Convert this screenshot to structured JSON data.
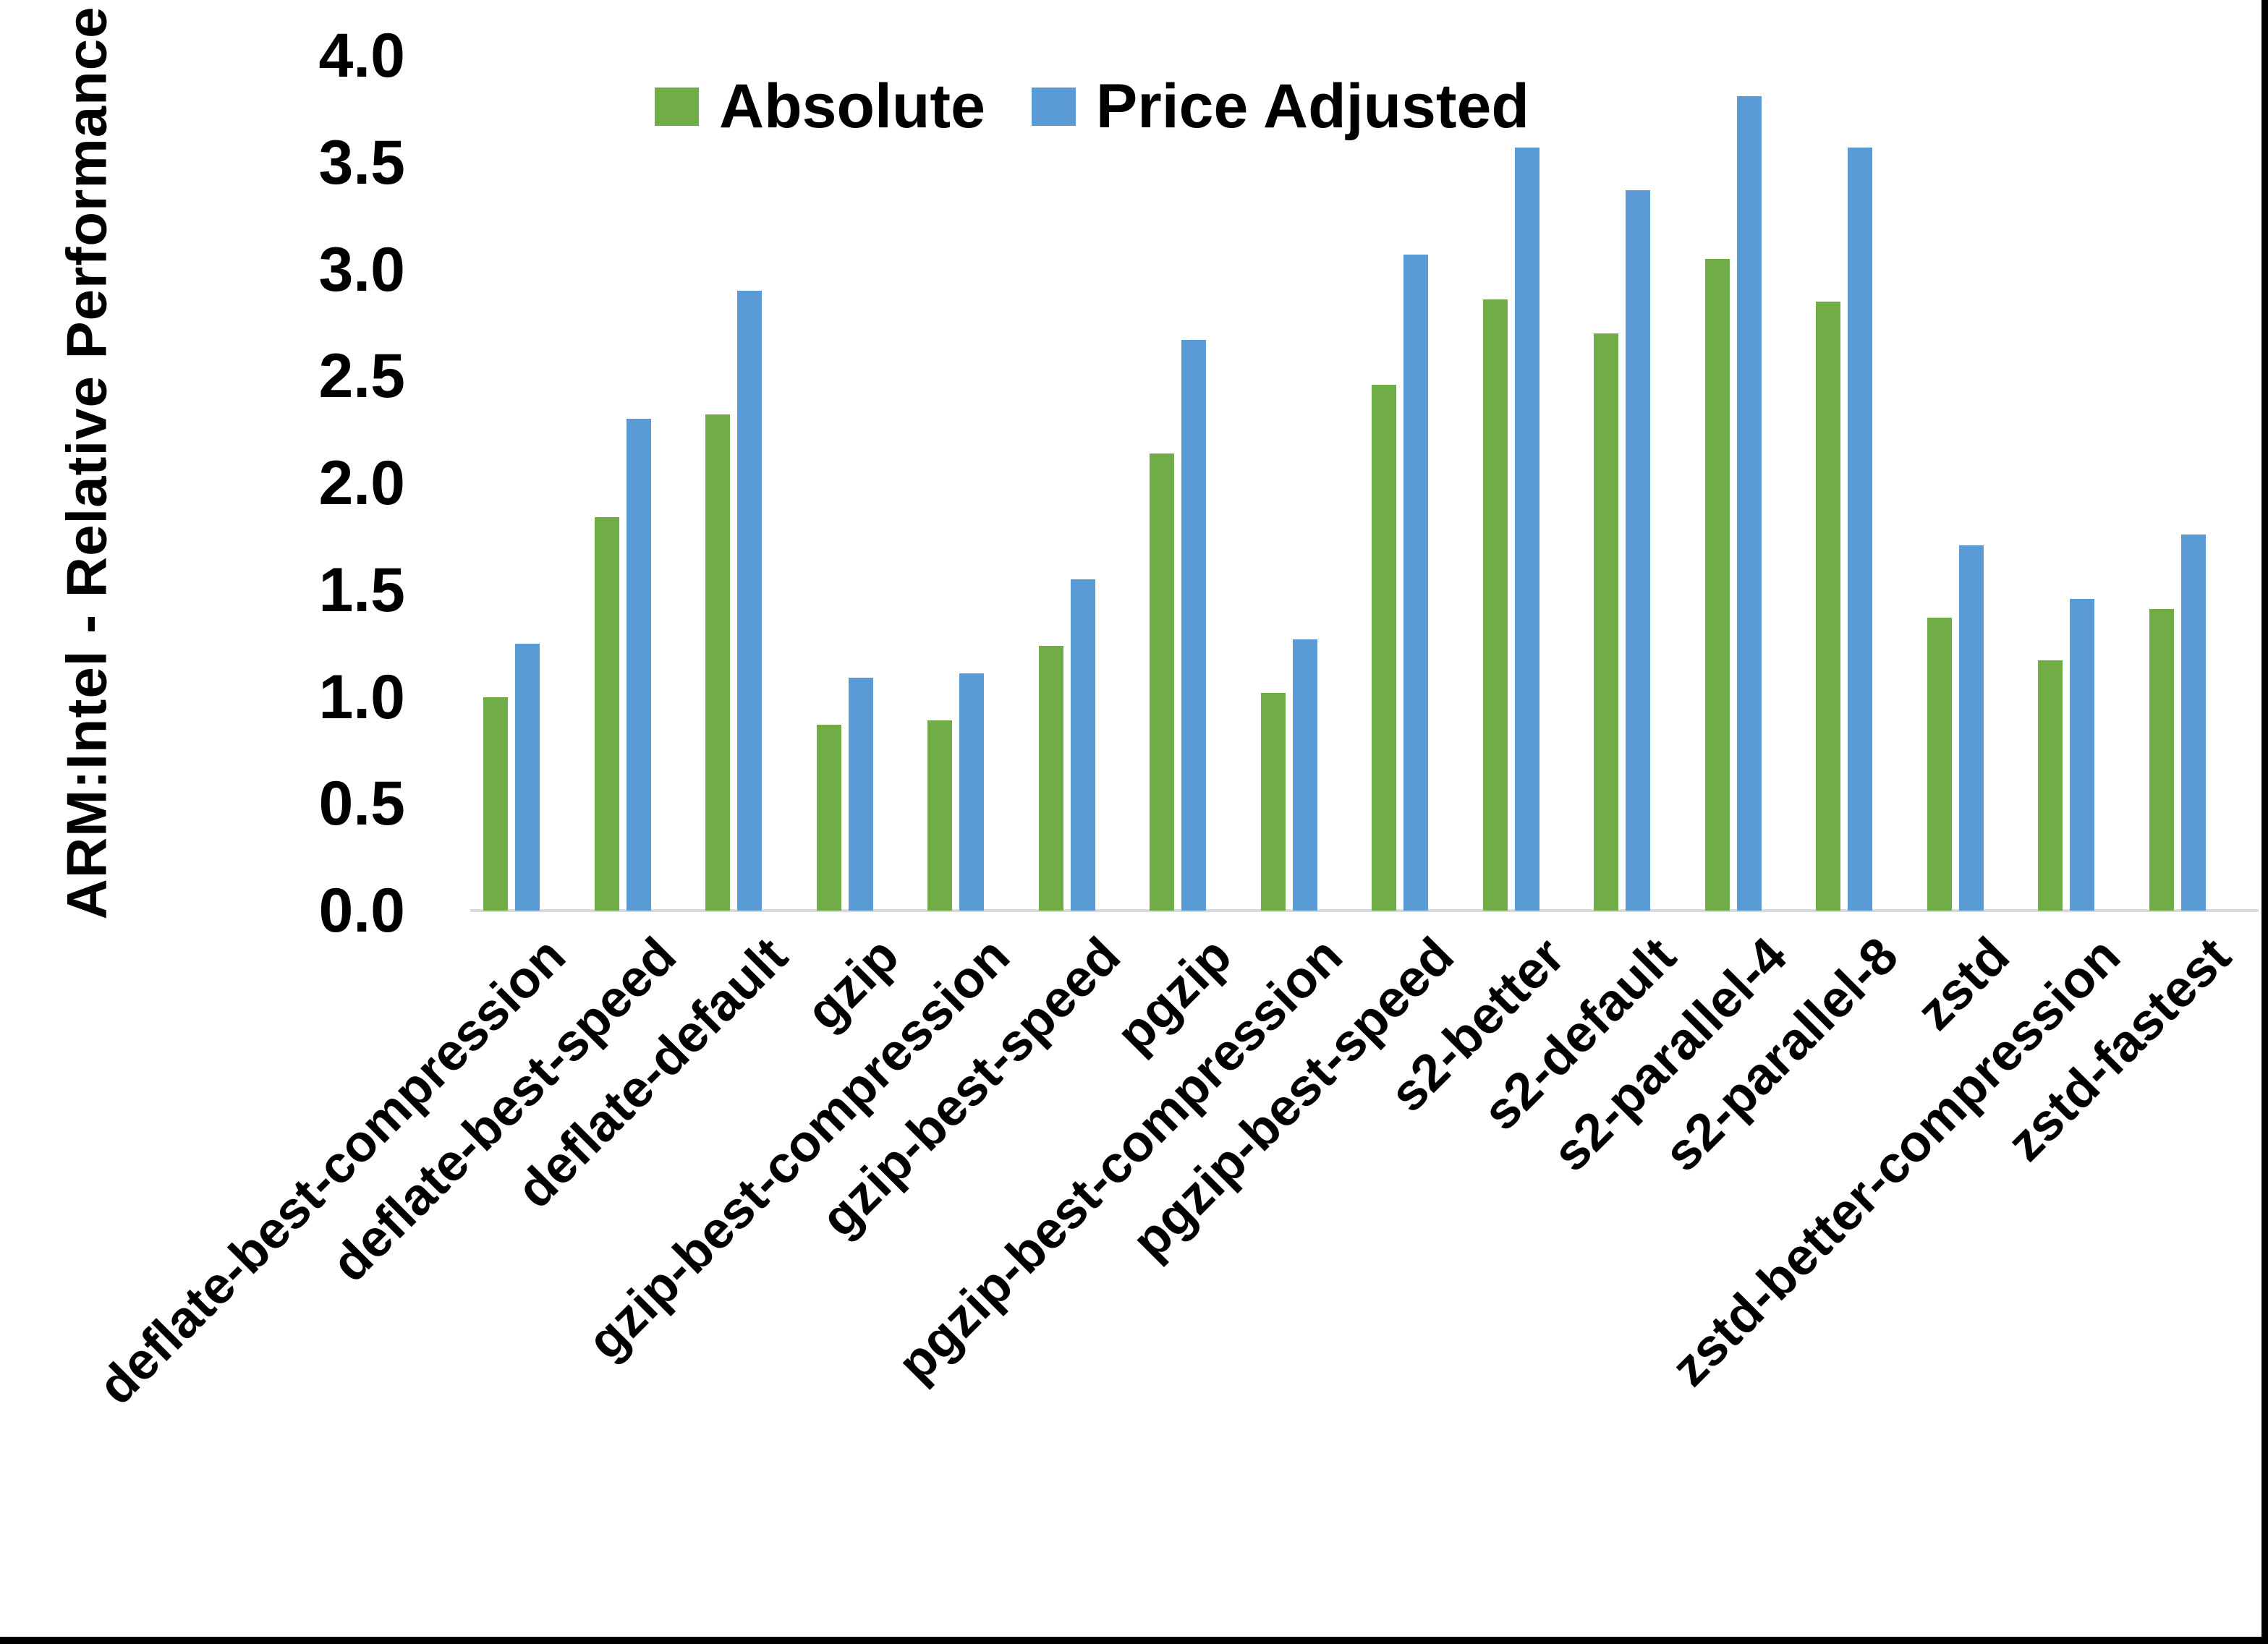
{
  "chart_data": {
    "type": "bar",
    "title": "",
    "ylabel": "ARM:Intel - Relative Performance",
    "xlabel": "",
    "ylim": [
      0.0,
      4.0
    ],
    "ytick_step": 0.5,
    "ytick_labels": [
      "0.0",
      "0.5",
      "1.0",
      "1.5",
      "2.0",
      "2.5",
      "3.0",
      "3.5",
      "4.0"
    ],
    "grid": false,
    "legend_position": "top-center",
    "categories": [
      "deflate-best-compression",
      "deflate-best-speed",
      "deflate-default",
      "gzip",
      "gzip-best-compression",
      "gzip-best-speed",
      "pgzip",
      "pgzip-best-compression",
      "pgzip-best-speed",
      "s2-better",
      "s2-default",
      "s2-parallel-4",
      "s2-parallel-8",
      "zstd",
      "zstd-better-compression",
      "zstd-fastest"
    ],
    "series": [
      {
        "name": "Absolute",
        "color": "#70AD47",
        "values": [
          1.0,
          1.84,
          2.32,
          0.87,
          0.89,
          1.24,
          2.14,
          1.02,
          2.46,
          2.86,
          2.7,
          3.05,
          2.85,
          1.37,
          1.17,
          1.41
        ]
      },
      {
        "name": "Price Adjusted",
        "color": "#5B9BD5",
        "values": [
          1.25,
          2.3,
          2.9,
          1.09,
          1.11,
          1.55,
          2.67,
          1.27,
          3.07,
          3.57,
          3.37,
          3.81,
          3.57,
          1.71,
          1.46,
          1.76
        ]
      }
    ]
  },
  "colors": {
    "axis_line": "#D9D9D9",
    "text": "#000000",
    "background": "#FFFFFF",
    "border": "#000000"
  }
}
